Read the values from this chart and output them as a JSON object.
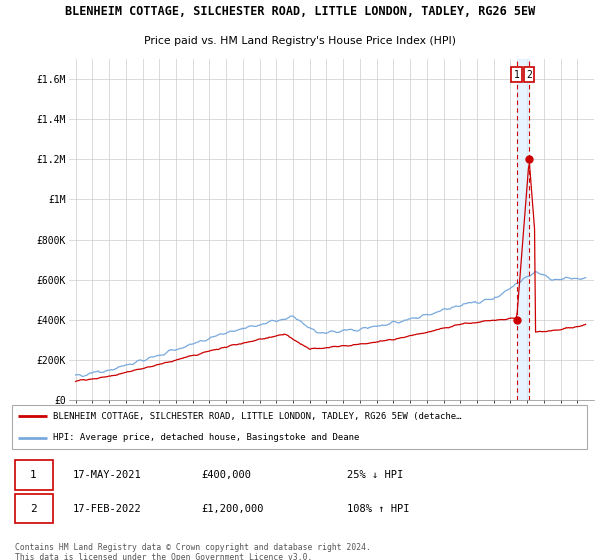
{
  "title_line1": "BLENHEIM COTTAGE, SILCHESTER ROAD, LITTLE LONDON, TADLEY, RG26 5EW",
  "title_line2": "Price paid vs. HM Land Registry's House Price Index (HPI)",
  "ylim": [
    0,
    1700000
  ],
  "yticks": [
    0,
    200000,
    400000,
    600000,
    800000,
    1000000,
    1200000,
    1400000,
    1600000
  ],
  "ytick_labels": [
    "£0",
    "£200K",
    "£400K",
    "£600K",
    "£800K",
    "£1M",
    "£1.2M",
    "£1.4M",
    "£1.6M"
  ],
  "hpi_color": "#7aaadd",
  "price_color": "#cc0000",
  "transaction1_year": 2021.37,
  "transaction1_price": 400000,
  "transaction2_year": 2022.12,
  "transaction2_price": 1200000,
  "legend_label1": "BLENHEIM COTTAGE, SILCHESTER ROAD, LITTLE LONDON, TADLEY, RG26 5EW (detache…",
  "legend_label2": "HPI: Average price, detached house, Basingstoke and Deane",
  "annotation1_date": "17-MAY-2021",
  "annotation1_price": "£400,000",
  "annotation1_hpi": "25% ↓ HPI",
  "annotation2_date": "17-FEB-2022",
  "annotation2_price": "£1,200,000",
  "annotation2_hpi": "108% ↑ HPI",
  "footer": "Contains HM Land Registry data © Crown copyright and database right 2024.\nThis data is licensed under the Open Government Licence v3.0.",
  "background_color": "#ffffff",
  "grid_color": "#cccccc",
  "shade_color": "#ddeeff",
  "vline_color": "#cc0000"
}
